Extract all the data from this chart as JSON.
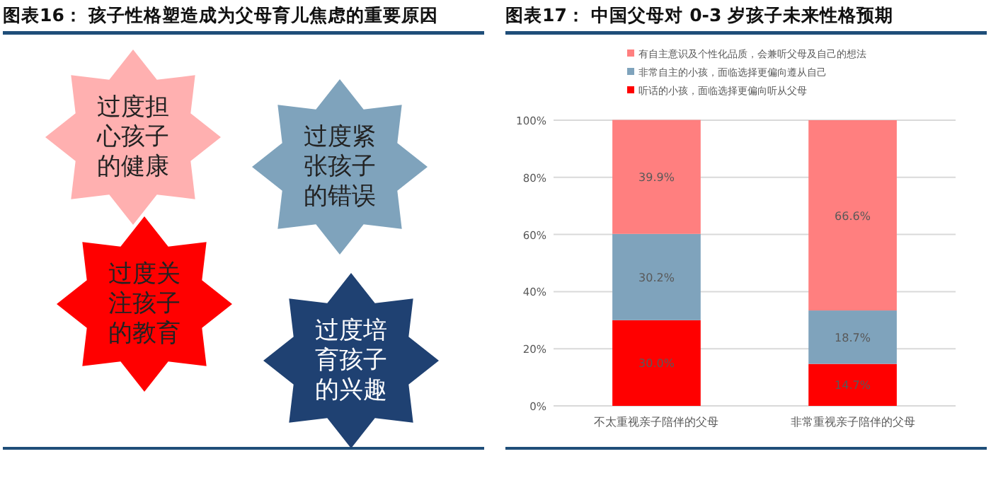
{
  "chart_data": [
    {
      "type": "other",
      "title": "图表16：  孩子性格塑造成为父母育儿焦虑的重要原因",
      "annotations": [
        "过度担心孩子的健康",
        "过度紧张孩子的错误",
        "过度关注孩子的教育",
        "过度培育孩子的兴趣"
      ]
    },
    {
      "type": "bar",
      "stacked": true,
      "title": "图表17：  中国父母对 0-3 岁孩子未来性格预期",
      "categories": [
        "不太重视亲子陪伴的父母",
        "非常重视亲子陪伴的父母"
      ],
      "series": [
        {
          "name": "听话的小孩，面临选择更偏向听从父母",
          "color": "#ff0000",
          "values": [
            30.0,
            14.7
          ],
          "value_labels": [
            "30.0%",
            "14.7%"
          ]
        },
        {
          "name": "非常自主的小孩，面临选择更偏向遵从自己",
          "color": "#7fa3bc",
          "values": [
            30.2,
            18.7
          ],
          "value_labels": [
            "30.2%",
            "18.7%"
          ]
        },
        {
          "name": "有自主意识及个性化品质，会兼听父母及自己的想法",
          "color": "#ff7f7f",
          "values": [
            39.9,
            66.6
          ],
          "value_labels": [
            "39.9%",
            "66.6%"
          ]
        }
      ],
      "ylim": [
        0,
        100
      ],
      "yticks": [
        {
          "value": 0,
          "label": "0%"
        },
        {
          "value": 20,
          "label": "20%"
        },
        {
          "value": 40,
          "label": "40%"
        },
        {
          "value": 60,
          "label": "60%"
        },
        {
          "value": 80,
          "label": "80%"
        },
        {
          "value": 100,
          "label": "100%"
        }
      ],
      "grid": "y",
      "legend": "top"
    }
  ]
}
